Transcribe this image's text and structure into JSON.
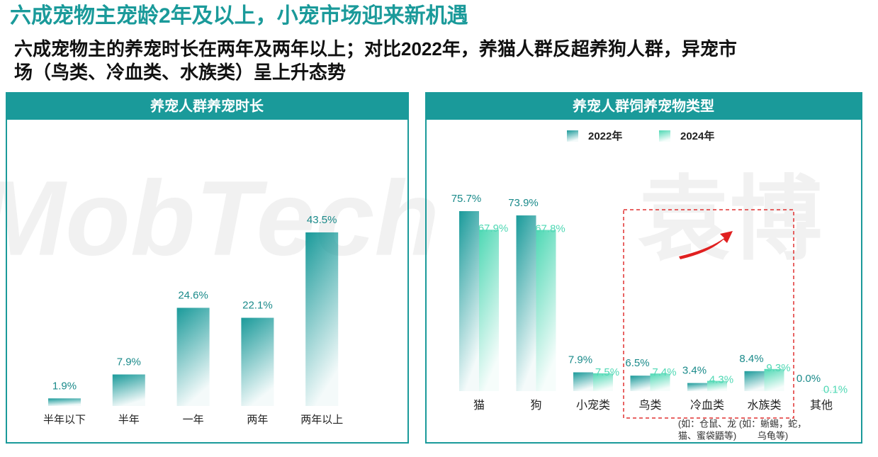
{
  "title": "六成宠物主宠龄2年及以上，小宠市场迎来新机遇",
  "subtitle_lines": [
    "六成宠物主的养宠时长在两年及两年以上；对比2022年，养猫人群反超养狗人群，异宠市",
    "场（鸟类、冷血类、水族类）呈上升态势"
  ],
  "watermark": [
    "MobTech",
    "袁博"
  ],
  "chart_data": [
    {
      "type": "bar",
      "title": "养宠人群养宠时长",
      "color": "#1a9a9a",
      "categories": [
        "半年以下",
        "半年",
        "一年",
        "两年",
        "两年以上"
      ],
      "values": [
        1.9,
        7.9,
        24.6,
        22.1,
        43.5
      ],
      "value_labels": [
        "1.9%",
        "7.9%",
        "24.6%",
        "22.1%",
        "43.5%"
      ]
    },
    {
      "type": "grouped_bar",
      "title": "养宠人群饲养宠物类型",
      "categories": [
        "猫",
        "狗",
        "小宠类",
        "鸟类",
        "冷血类",
        "水族类",
        "其他"
      ],
      "series": [
        {
          "name": "2022年",
          "color": "#1a9a9a",
          "values": [
            75.7,
            73.9,
            7.9,
            6.5,
            3.4,
            8.4,
            0.0
          ],
          "value_labels": [
            "75.7%",
            "73.9%",
            "7.9%",
            "6.5%",
            "3.4%",
            "8.4%",
            "0.0%"
          ]
        },
        {
          "name": "2024年",
          "color": "#4fd8b4",
          "values": [
            67.9,
            67.8,
            7.5,
            7.4,
            4.3,
            9.3,
            0.1
          ],
          "value_labels": [
            "67.9%",
            "67.8%",
            "7.5%",
            "7.4%",
            "4.3%",
            "9.3%",
            "0.1%"
          ]
        }
      ],
      "annotations": [
        {
          "category": 4,
          "lines": [
            "(如：仓鼠、龙",
            "猫、蜜袋鼯等)"
          ]
        },
        {
          "category": 5,
          "lines": [
            "(如：蜥蜴，蛇，",
            "乌龟等)"
          ]
        }
      ]
    }
  ]
}
